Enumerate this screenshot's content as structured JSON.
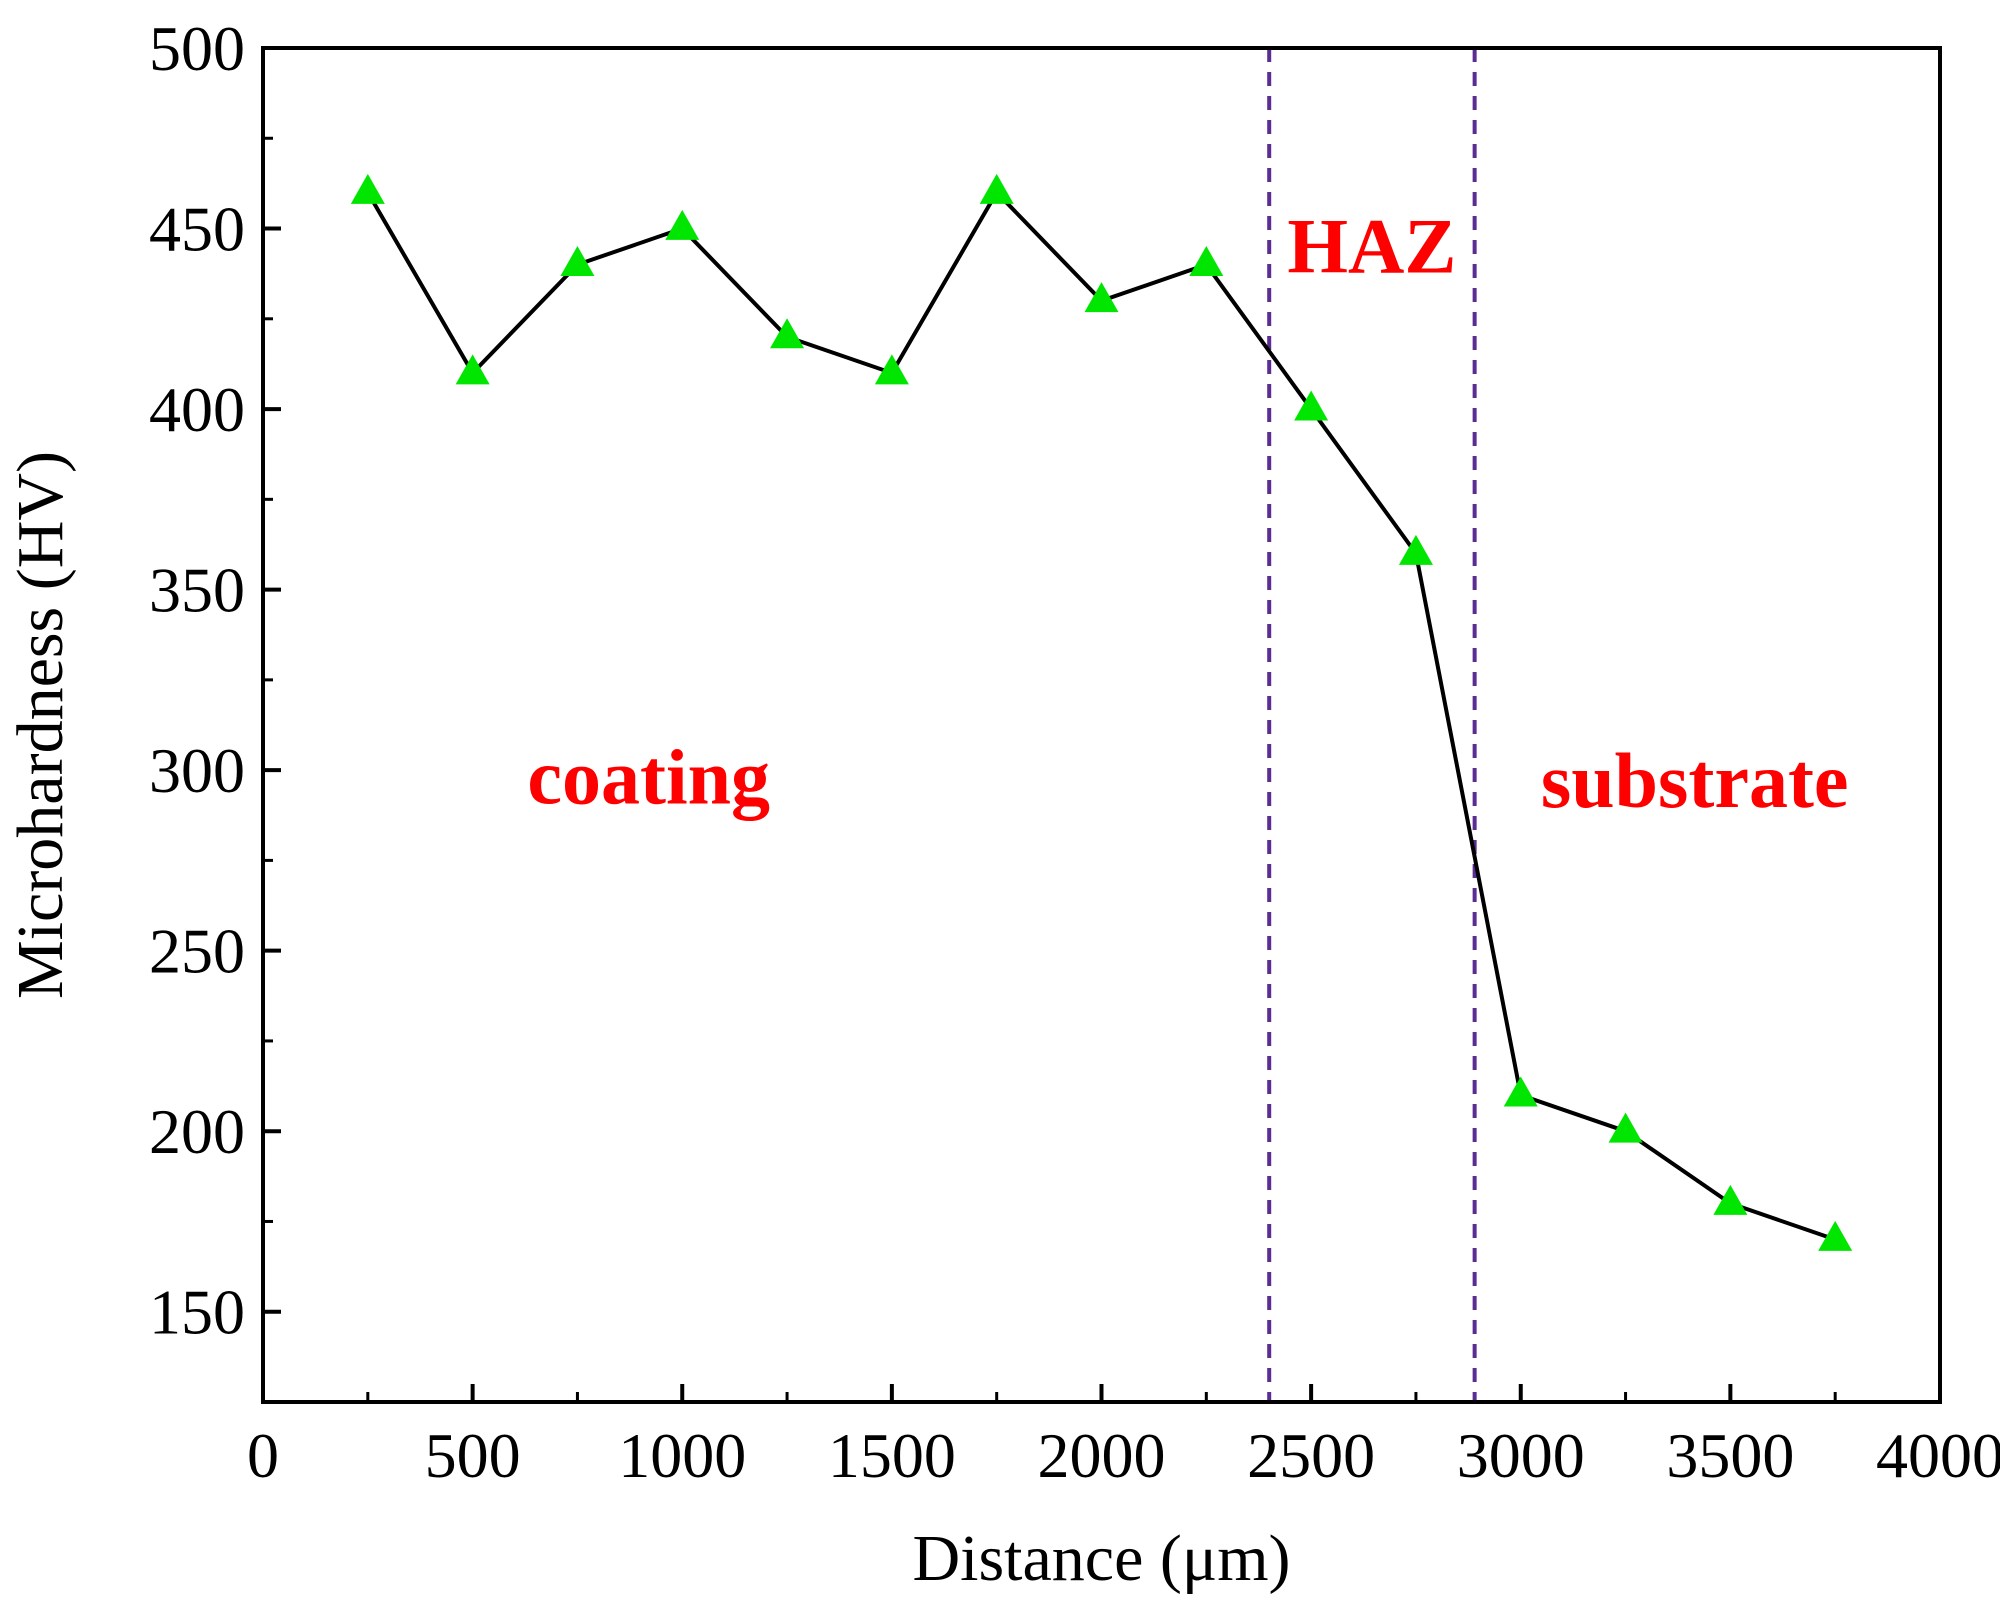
{
  "chart_data": {
    "type": "line",
    "title": "",
    "xlabel": "Distance (μm)",
    "ylabel": "Microhardness (HV)",
    "xlim": [
      0,
      4000
    ],
    "ylim": [
      125,
      500
    ],
    "x_ticks": [
      0,
      500,
      1000,
      1500,
      2000,
      2500,
      3000,
      3500,
      4000
    ],
    "y_ticks": [
      150,
      200,
      250,
      300,
      350,
      400,
      450,
      500
    ],
    "x_minor_ticks": [
      250,
      750,
      1250,
      1750,
      2250,
      2750,
      3250,
      3750
    ],
    "y_minor_ticks": [
      175,
      225,
      275,
      325,
      375,
      425,
      475
    ],
    "grid": false,
    "legend": "none",
    "series": [
      {
        "marker": "triangle",
        "marker_color": "#00e600",
        "line_color": "#000000",
        "x": [
          250,
          500,
          750,
          1000,
          1250,
          1500,
          1750,
          2000,
          2250,
          2500,
          2750,
          3000,
          3250,
          3500,
          3750
        ],
        "y": [
          460,
          410,
          440,
          450,
          420,
          410,
          460,
          430,
          440,
          400,
          360,
          210,
          200,
          180,
          170
        ]
      }
    ],
    "boundaries": [
      {
        "x": 2400,
        "color": "#5b2c91",
        "style": "dashed"
      },
      {
        "x": 2890,
        "color": "#5b2c91",
        "style": "dashed"
      }
    ],
    "annotations": [
      {
        "text": "coating",
        "x": 920,
        "y": 298,
        "color": "#ff0000"
      },
      {
        "text": "HAZ",
        "x": 2645,
        "y": 445,
        "color": "#ff0000"
      },
      {
        "text": "substrate",
        "x": 3415,
        "y": 297,
        "color": "#ff0000"
      }
    ]
  }
}
